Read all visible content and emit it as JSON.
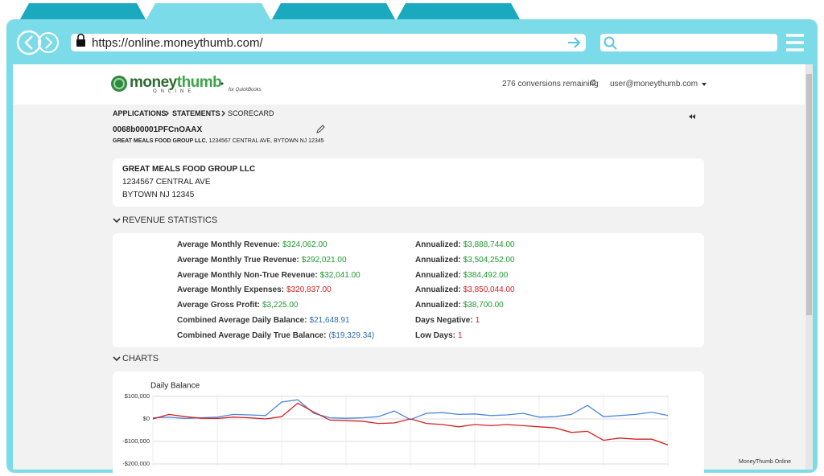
{
  "browser": {
    "url": "https://online.moneythumb.com/"
  },
  "header": {
    "logo_a": "money",
    "logo_b": "thumb",
    "logo_sub": "ONLINE",
    "logo_tag": "for QuickBooks",
    "conversions": "276 conversions remaining",
    "user": "user@moneythumb.com"
  },
  "breadcrumb": [
    "APPLICATIONS",
    "STATEMENTS",
    "SCORECARD"
  ],
  "record": {
    "id": "0068b00001PFCnOAAX",
    "company": "GREAT MEALS FOOD GROUP LLC",
    "address_rest": ", 1234567 CENTRAL AVE, BYTOWN NJ 12345"
  },
  "customer_card": {
    "name": "GREAT MEALS FOOD GROUP LLC",
    "street": "1234567 CENTRAL AVE",
    "city": "BYTOWN NJ 12345"
  },
  "revenue": {
    "heading": "REVENUE STATISTICS",
    "left": [
      {
        "label": "Average Monthly Revenue:",
        "value": "$324,062.00",
        "color": "#1f9a2e"
      },
      {
        "label": "Average Monthly True Revenue:",
        "value": "$292,021.00",
        "color": "#1f9a2e"
      },
      {
        "label": "Average Monthly Non-True Revenue:",
        "value": "$32,041.00",
        "color": "#1f9a2e"
      },
      {
        "label": "Average Monthly Expenses:",
        "value": "$320,837.00",
        "color": "#d71f1f"
      },
      {
        "label": "Average Gross Profit:",
        "value": "$3,225.00",
        "color": "#1f9a2e"
      },
      {
        "label": "Combined Average Daily Balance:",
        "value": "$21,648.91",
        "color": "#2a6db5"
      },
      {
        "label": "Combined Average Daily True Balance:",
        "value": "($19,329.34)",
        "color": "#2a6db5"
      }
    ],
    "right": [
      {
        "label": "Annualized:",
        "value": "$3,888,744.00",
        "color": "#1f9a2e"
      },
      {
        "label": "Annualized:",
        "value": "$3,504,252.00",
        "color": "#1f9a2e"
      },
      {
        "label": "Annualized:",
        "value": "$384,492.00",
        "color": "#1f9a2e"
      },
      {
        "label": "Annualized:",
        "value": "$3,850,044.00",
        "color": "#d71f1f"
      },
      {
        "label": "Annualized:",
        "value": "$38,700.00",
        "color": "#1f9a2e"
      },
      {
        "label": "Days Negative:",
        "value": "1",
        "color": "#d71f1f"
      },
      {
        "label": "Low Days:",
        "value": "1",
        "color": "#d71f1f"
      }
    ]
  },
  "charts_heading": "CHARTS",
  "chart_data": {
    "type": "line",
    "title": "Daily Balance",
    "series": [
      {
        "color": "#4a86e0",
        "values": [
          5000,
          8000,
          2000,
          5000,
          8000,
          20000,
          18000,
          15000,
          75000,
          85000,
          25000,
          5000,
          3000,
          5000,
          10000,
          35000,
          -3000,
          25000,
          28000,
          20000,
          22000,
          15000,
          18000,
          25000,
          8000,
          10000,
          20000,
          60000,
          10000,
          15000,
          20000,
          30000,
          15000
        ]
      },
      {
        "color": "#d62020",
        "values": [
          0,
          20000,
          10000,
          3000,
          2000,
          8000,
          5000,
          0,
          10000,
          70000,
          30000,
          -5000,
          -8000,
          -10000,
          -20000,
          -18000,
          0,
          -20000,
          -25000,
          -35000,
          -25000,
          -30000,
          -25000,
          -30000,
          -35000,
          -40000,
          -60000,
          -55000,
          -95000,
          -85000,
          -90000,
          -90000,
          -115000
        ]
      }
    ],
    "ylim": [
      -210000,
      110000
    ],
    "yticks": [
      {
        "value": 100000,
        "label": "$100,000"
      },
      {
        "value": 0,
        "label": "$0"
      },
      {
        "value": -100000,
        "label": "-$100,000"
      },
      {
        "value": -200000,
        "label": "-$200,000"
      }
    ],
    "grid": true
  },
  "status": "MoneyThumb Online"
}
